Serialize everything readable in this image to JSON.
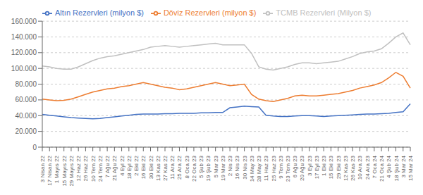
{
  "chart_data": {
    "type": "line",
    "categories": [
      "3 Nisan 22",
      "17 Nisan 22",
      "1 Mayıs 22",
      "15 Mayıs 22",
      "29 Mayıs 22",
      "12 Haz 22",
      "26 Haz 22",
      "10 Tem 22",
      "24 Tem 22",
      "7 Ağu 22",
      "21 Ağu 22",
      "4 Eyl 22",
      "18 Eyl 22",
      "2 Eki 22",
      "16 Eki 22",
      "30 Eki 22",
      "13 Kas 22",
      "27 Kas 22",
      "11 Ara 22",
      "25 Ara 22",
      "8 Oca 23",
      "22 Oca 23",
      "5 Şub 23",
      "19 Şub 23",
      "5 Mar 23",
      "19 Mar 23",
      "2 Nis 23",
      "16 Nis 23",
      "30 Nis 23",
      "14 May 23",
      "28 May 23",
      "11 Haz 23",
      "25 Haz 23",
      "9 Tem 23",
      "23 Tem 23",
      "6 Ağu 23",
      "20 Ağu 23",
      "3 Eyl 23",
      "17 Eyl 23",
      "1 Eki 23",
      "15 Eki 23",
      "29 Eki 23",
      "12 Kas 23",
      "26 Kas 23",
      "10 Ara 23",
      "24 Ara 23",
      "7 Oca 24",
      "21 Oca 24",
      "4 Şub 24",
      "18 Şub 24",
      "3 Mar 24",
      "15 Mar 24"
    ],
    "series": [
      {
        "name": "Altın Rezervleri (milyon $)",
        "color": "#4472c4",
        "values": [
          41500,
          40500,
          39500,
          38500,
          37500,
          37000,
          36500,
          36000,
          36500,
          37500,
          38500,
          39500,
          40500,
          41500,
          42000,
          42000,
          42000,
          42500,
          42500,
          43000,
          43000,
          43000,
          43500,
          43500,
          44000,
          44000,
          50000,
          51000,
          52000,
          51500,
          51000,
          40500,
          39500,
          39000,
          39000,
          39500,
          40000,
          40000,
          39500,
          39000,
          39500,
          40000,
          40500,
          41000,
          41500,
          42000,
          42000,
          42500,
          43000,
          44000,
          45000,
          55000
        ]
      },
      {
        "name": "Döviz Rezervleri (milyon $)",
        "color": "#ed7d31",
        "values": [
          61000,
          60000,
          59000,
          59500,
          61000,
          64000,
          67000,
          70000,
          72000,
          74000,
          75000,
          77000,
          78000,
          80000,
          82000,
          80000,
          78000,
          76000,
          75000,
          73000,
          74000,
          76000,
          78000,
          80000,
          82000,
          80000,
          78000,
          79000,
          80000,
          67000,
          61000,
          59000,
          58000,
          60000,
          62000,
          65000,
          66000,
          65000,
          65000,
          66000,
          67000,
          68000,
          70000,
          72000,
          75000,
          77000,
          79000,
          82000,
          88000,
          95000,
          90000,
          75000
        ]
      },
      {
        "name": "TCMB Rezervleri (Milyon $)",
        "color": "#c0c0c0",
        "values": [
          103000,
          102000,
          100000,
          99000,
          99000,
          102000,
          106000,
          110000,
          113000,
          115000,
          116000,
          118000,
          120000,
          122000,
          124000,
          127000,
          128000,
          129000,
          128000,
          127000,
          128000,
          129000,
          130000,
          131000,
          132000,
          130000,
          130000,
          130000,
          130000,
          119000,
          102000,
          99000,
          98000,
          100000,
          102000,
          105000,
          107000,
          107000,
          106000,
          107000,
          108000,
          109000,
          112000,
          115000,
          119000,
          121000,
          122000,
          125000,
          132000,
          140000,
          145000,
          130000
        ]
      }
    ],
    "ylim": [
      0,
      160000
    ],
    "yticks": [
      0,
      {
        "value": 20000,
        "label": "20.000"
      },
      {
        "value": 40000,
        "label": "40.000"
      },
      {
        "value": 60000,
        "label": "60.000"
      },
      {
        "value": 80000,
        "label": "80.000"
      },
      {
        "value": 100000,
        "label": "100.000"
      },
      {
        "value": 120000,
        "label": "120.000"
      },
      {
        "value": 140000,
        "label": "140.000"
      },
      {
        "value": 160000,
        "label": "160.000"
      }
    ],
    "grid": true,
    "legend": "upper left"
  }
}
